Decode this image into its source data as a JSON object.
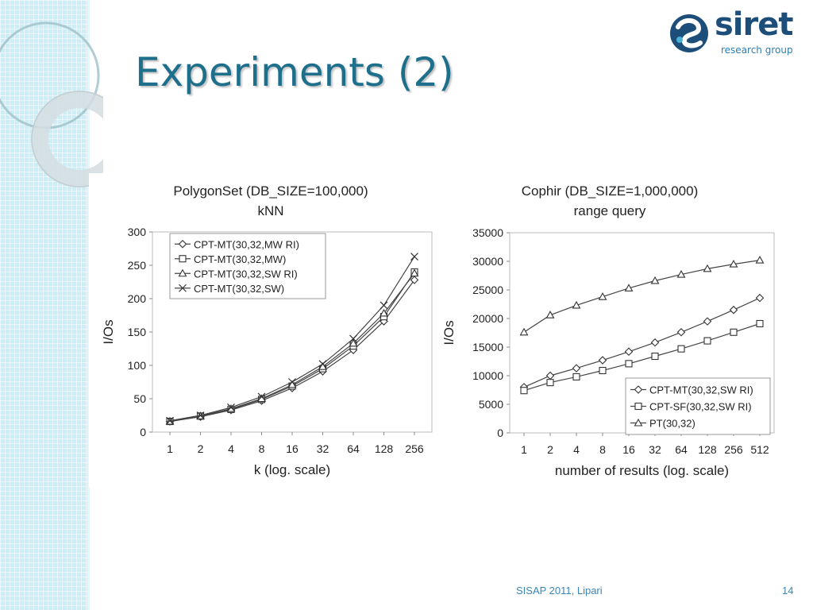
{
  "slide": {
    "title": "Experiments (2)",
    "logo": {
      "name": "siret",
      "subtitle": "research group"
    },
    "footer": {
      "left": "SISAP 2011, Lipari",
      "page": "14"
    }
  },
  "chart_data": [
    {
      "type": "line",
      "title": "PolygonSet (DB_SIZE=100,000)",
      "subtitle": "kNN",
      "xlabel": "k (log. scale)",
      "ylabel": "I/Os",
      "categories": [
        "1",
        "2",
        "4",
        "8",
        "16",
        "32",
        "64",
        "128",
        "256"
      ],
      "ylim": [
        0,
        300
      ],
      "yticks": [
        0,
        50,
        100,
        150,
        200,
        250,
        300
      ],
      "legend_position": "top-left",
      "series": [
        {
          "name": "CPT-MT(30,32,MW RI)",
          "marker": "diamond",
          "values": [
            16,
            23,
            33,
            47,
            66,
            91,
            123,
            166,
            228
          ]
        },
        {
          "name": "CPT-MT(30,32,MW)",
          "marker": "square",
          "values": [
            16,
            24,
            34,
            49,
            69,
            95,
            129,
            173,
            240
          ]
        },
        {
          "name": "CPT-MT(30,32,SW RI)",
          "marker": "triangle",
          "values": [
            16,
            24,
            35,
            50,
            71,
            98,
            133,
            178,
            238
          ]
        },
        {
          "name": "CPT-MT(30,32,SW)",
          "marker": "x",
          "values": [
            17,
            25,
            37,
            53,
            75,
            102,
            140,
            190,
            263
          ]
        }
      ]
    },
    {
      "type": "line",
      "title": "Cophir (DB_SIZE=1,000,000)",
      "subtitle": "range query",
      "xlabel": "number of results (log. scale)",
      "ylabel": "I/Os",
      "categories": [
        "1",
        "2",
        "4",
        "8",
        "16",
        "32",
        "64",
        "128",
        "256",
        "512"
      ],
      "ylim": [
        0,
        35000
      ],
      "yticks": [
        0,
        5000,
        10000,
        15000,
        20000,
        25000,
        30000,
        35000
      ],
      "legend_position": "bottom-right",
      "series": [
        {
          "name": "CPT-MT(30,32,SW RI)",
          "marker": "diamond",
          "values": [
            8000,
            10000,
            11300,
            12700,
            14200,
            15800,
            17600,
            19500,
            21500,
            23600
          ]
        },
        {
          "name": "CPT-SF(30,32,SW RI)",
          "marker": "square",
          "values": [
            7400,
            8800,
            9800,
            10900,
            12100,
            13400,
            14700,
            16100,
            17600,
            19100
          ]
        },
        {
          "name": "PT(30,32)",
          "marker": "triangle",
          "values": [
            17600,
            20600,
            22300,
            23800,
            25300,
            26600,
            27700,
            28700,
            29500,
            30200
          ]
        }
      ]
    }
  ]
}
